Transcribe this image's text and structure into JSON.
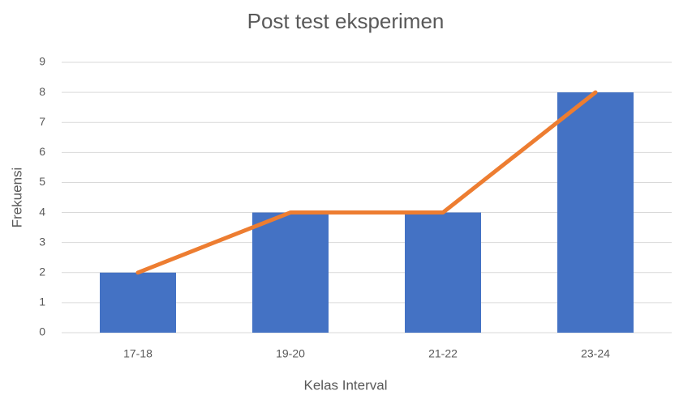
{
  "chart_data": {
    "type": "bar",
    "title": "Post test eksperimen",
    "x_label": "Kelas Interval",
    "y_label": "Frekuensi",
    "categories": [
      "17-18",
      "19-20",
      "21-22",
      "23-24"
    ],
    "values": [
      2,
      4,
      4,
      8
    ],
    "color": "#4472c4",
    "line_color": "#ed7d31",
    "ylim": [
      0,
      9
    ],
    "yticks": [
      0,
      1,
      2,
      3,
      4,
      5,
      6,
      7,
      8,
      9
    ],
    "grid": true
  }
}
